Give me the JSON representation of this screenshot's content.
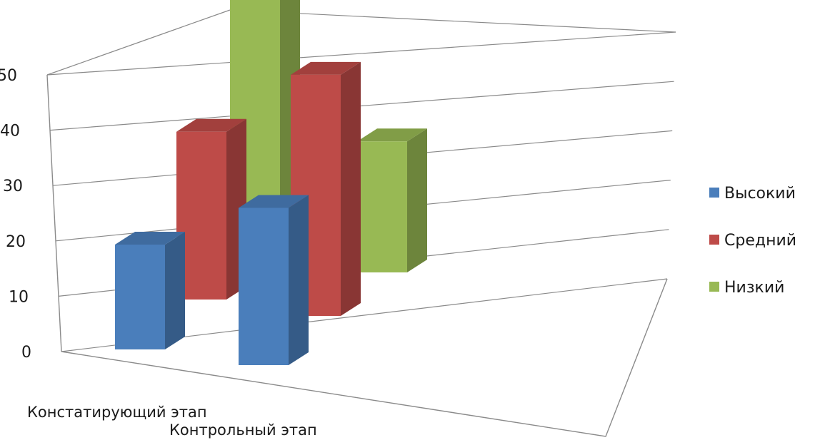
{
  "chart_data": {
    "type": "bar",
    "subtype": "3d-clustered-column",
    "categories": [
      "Констатирующий этап",
      "Контрольный этап"
    ],
    "series": [
      {
        "name": "Высокий",
        "values": [
          20,
          30
        ],
        "color": "#4a7ebb"
      },
      {
        "name": "Средний",
        "values": [
          32,
          46
        ],
        "color": "#be4b48"
      },
      {
        "name": "Низкий",
        "values": [
          50,
          25
        ],
        "color": "#98b954"
      }
    ],
    "y_ticks": [
      "0",
      "10",
      "20",
      "30",
      "40",
      "50"
    ],
    "ylim": [
      0,
      50
    ],
    "grid": true,
    "legend_position": "right"
  }
}
